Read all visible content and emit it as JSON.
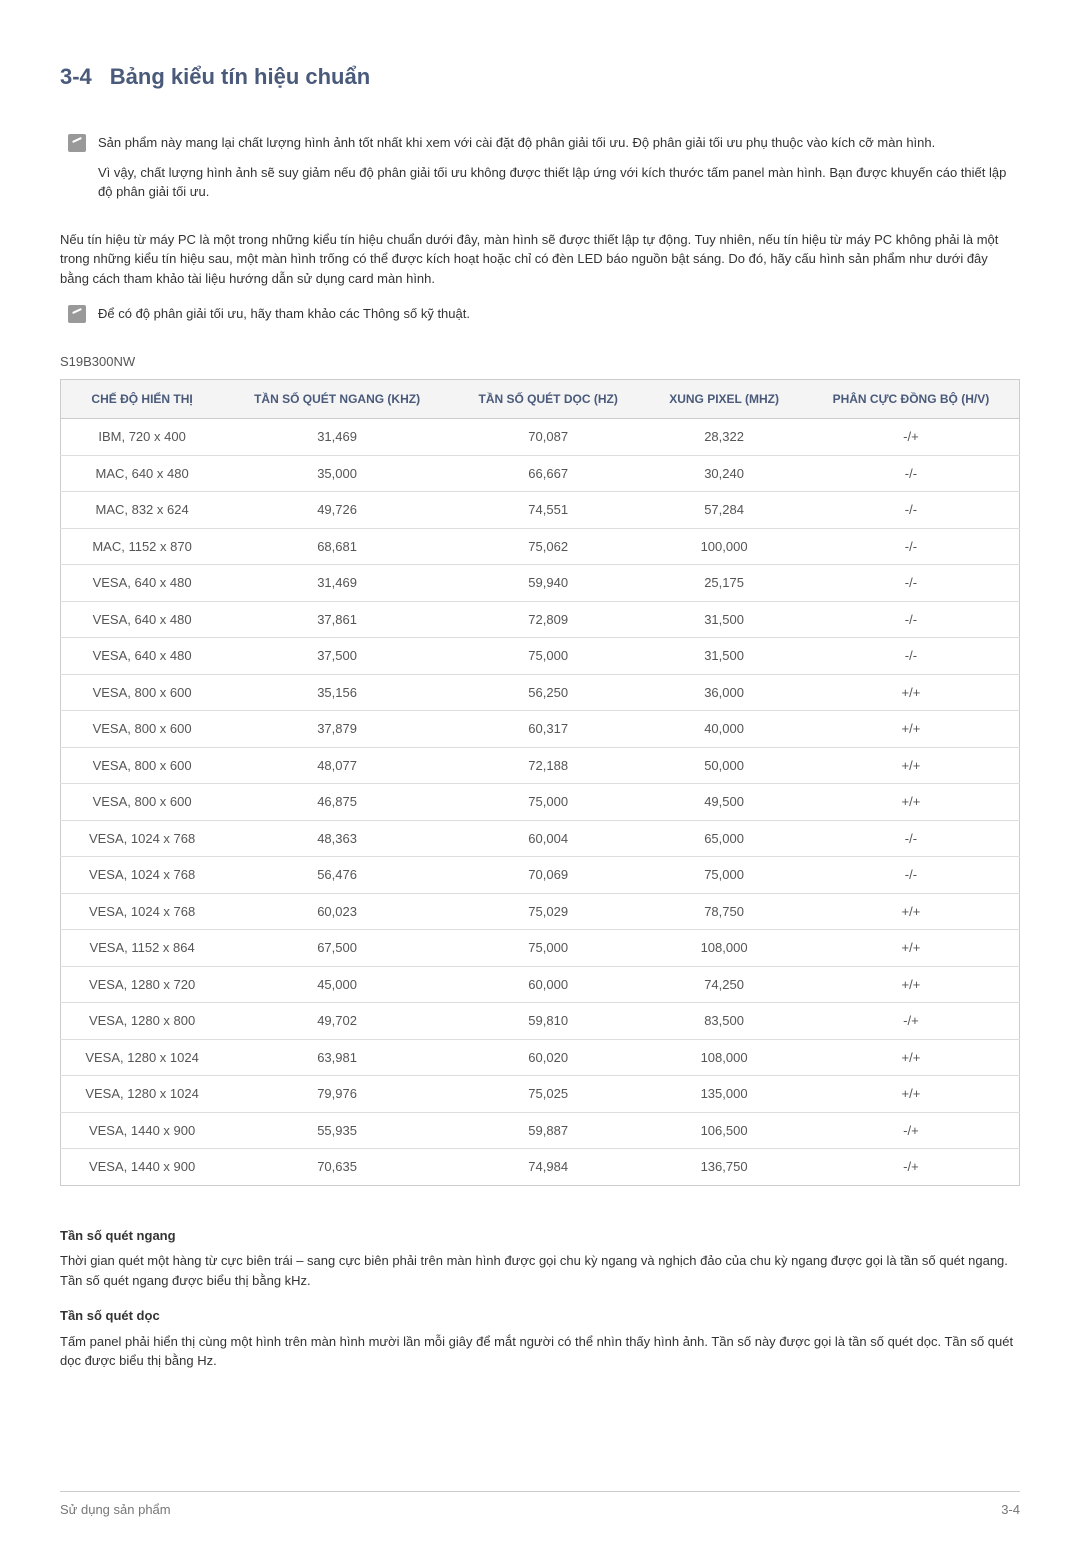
{
  "section": {
    "number": "3-4",
    "title": "Bảng kiểu tín hiệu chuẩn"
  },
  "note1": {
    "p1": "Sản phẩm này mang lại chất lượng hình ảnh tốt nhất khi xem với cài đặt độ phân giải tối ưu. Độ phân giải tối ưu phụ thuộc vào kích cỡ màn hình.",
    "p2": "Vì vậy, chất lượng hình ảnh sẽ suy giảm nếu độ phân giải tối ưu không được thiết lập ứng với kích thước tấm panel màn hình. Bạn được khuyến cáo thiết lập độ phân giải tối ưu."
  },
  "intro": "Nếu tín hiệu từ máy PC là một trong những kiểu tín hiệu chuẩn dưới đây, màn hình sẽ được thiết lập tự động. Tuy nhiên, nếu tín hiệu từ máy PC không phải là một trong những kiểu tín hiệu sau, một màn hình trống có thể được kích hoạt hoặc chỉ có đèn LED báo nguồn bật sáng. Do đó, hãy cấu hình sản phẩm như dưới đây bằng cách tham khảo tài liệu hướng dẫn sử dụng card màn hình.",
  "note2": "Để có độ phân giải tối ưu, hãy tham khảo các Thông số kỹ thuật.",
  "model": "S19B300NW",
  "table": {
    "headers": [
      "CHẾ ĐỘ HIỂN THỊ",
      "TẦN SỐ QUÉT NGANG (KHZ)",
      "TẦN SỐ QUÉT DỌC (HZ)",
      "XUNG PIXEL (MHZ)",
      "PHÂN CỰC ĐỒNG BỘ (H/V)"
    ],
    "rows": [
      [
        "IBM, 720 x 400",
        "31,469",
        "70,087",
        "28,322",
        "-/+"
      ],
      [
        "MAC, 640 x 480",
        "35,000",
        "66,667",
        "30,240",
        "-/-"
      ],
      [
        "MAC, 832 x 624",
        "49,726",
        "74,551",
        "57,284",
        "-/-"
      ],
      [
        "MAC, 1152 x 870",
        "68,681",
        "75,062",
        "100,000",
        "-/-"
      ],
      [
        "VESA, 640 x 480",
        "31,469",
        "59,940",
        "25,175",
        "-/-"
      ],
      [
        "VESA, 640 x 480",
        "37,861",
        "72,809",
        "31,500",
        "-/-"
      ],
      [
        "VESA, 640 x 480",
        "37,500",
        "75,000",
        "31,500",
        "-/-"
      ],
      [
        "VESA, 800 x 600",
        "35,156",
        "56,250",
        "36,000",
        "+/+"
      ],
      [
        "VESA, 800 x 600",
        "37,879",
        "60,317",
        "40,000",
        "+/+"
      ],
      [
        "VESA, 800 x 600",
        "48,077",
        "72,188",
        "50,000",
        "+/+"
      ],
      [
        "VESA, 800 x 600",
        "46,875",
        "75,000",
        "49,500",
        "+/+"
      ],
      [
        "VESA, 1024 x 768",
        "48,363",
        "60,004",
        "65,000",
        "-/-"
      ],
      [
        "VESA, 1024 x 768",
        "56,476",
        "70,069",
        "75,000",
        "-/-"
      ],
      [
        "VESA, 1024 x 768",
        "60,023",
        "75,029",
        "78,750",
        "+/+"
      ],
      [
        "VESA, 1152 x 864",
        "67,500",
        "75,000",
        "108,000",
        "+/+"
      ],
      [
        "VESA, 1280 x 720",
        "45,000",
        "60,000",
        "74,250",
        "+/+"
      ],
      [
        "VESA, 1280 x 800",
        "49,702",
        "59,810",
        "83,500",
        "-/+"
      ],
      [
        "VESA, 1280 x 1024",
        "63,981",
        "60,020",
        "108,000",
        "+/+"
      ],
      [
        "VESA, 1280 x 1024",
        "79,976",
        "75,025",
        "135,000",
        "+/+"
      ],
      [
        "VESA, 1440 x 900",
        "55,935",
        "59,887",
        "106,500",
        "-/+"
      ],
      [
        "VESA, 1440 x 900",
        "70,635",
        "74,984",
        "136,750",
        "-/+"
      ]
    ],
    "col_widths": [
      "20%",
      "20%",
      "20%",
      "20%",
      "20%"
    ]
  },
  "definitions": {
    "h_title": "Tần số quét ngang",
    "h_text": "Thời gian quét một hàng từ cực biên trái – sang cực biên phải trên màn hình được gọi chu kỳ ngang và nghịch đảo của chu kỳ ngang được gọi là tần số quét ngang. Tần số quét ngang được biểu thị bằng kHz.",
    "v_title": "Tần số quét dọc",
    "v_text": "Tấm panel phải hiển thị cùng một hình trên màn hình mười lần mỗi giây để mắt người có thể nhìn thấy hình ảnh. Tần số này được gọi là tần số quét dọc. Tần số quét dọc được biểu thị bằng Hz."
  },
  "footer": {
    "left": "Sử dụng sản phẩm",
    "right": "3-4"
  },
  "colors": {
    "heading": "#4a5a7a",
    "text": "#333333",
    "muted": "#777777",
    "border": "#cccccc",
    "row_border": "#dddddd",
    "th_bg": "#f4f4f4"
  }
}
